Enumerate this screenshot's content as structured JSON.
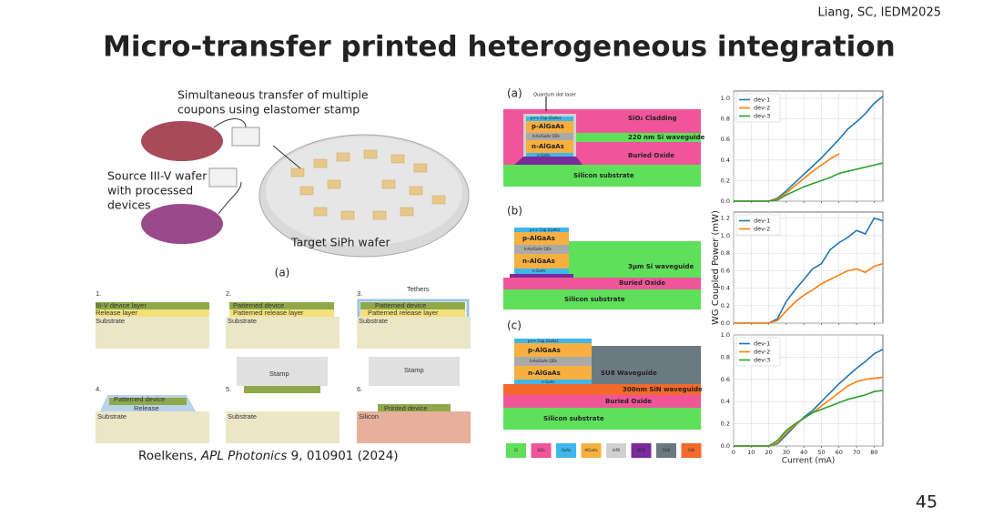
{
  "header": {
    "citation": "Liang, SC, IEDM2025",
    "title": "Micro-transfer printed heterogeneous integration"
  },
  "left_figure": {
    "caption_lines": [
      "Simultaneous transfer of multiple",
      "coupons using elastomer stamp"
    ],
    "source_lines": [
      "Source III-V wafer",
      "with processed",
      "devices"
    ],
    "target_label": "Target SiPh wafer",
    "panel_label": "(a)"
  },
  "process_steps": [
    {
      "number": "1.",
      "labels": [
        "III-V device layer",
        "Release layer",
        "Substrate"
      ]
    },
    {
      "number": "2.",
      "labels": [
        "Patterned device",
        "Patterned release layer",
        "Substrate"
      ]
    },
    {
      "number": "3.",
      "labels": [
        "Tethers",
        "Patterned device",
        "Patterned release layer",
        "Substrate",
        "Stamp"
      ]
    },
    {
      "number": "4.",
      "labels": [
        "Patterned device",
        "Release",
        "Substrate"
      ]
    },
    {
      "number": "5.",
      "labels": [
        "Stamp",
        "Substrate"
      ]
    },
    {
      "number": "6.",
      "labels": [
        "Printed device",
        "Silicon"
      ]
    }
  ],
  "reference": {
    "author": "Roelkens, ",
    "journal": "APL Photonics",
    "rest": " 9, 010901 (2024)"
  },
  "cross_sections": [
    {
      "label": "(a)",
      "texts": [
        "Quantum dot laser",
        "p++ Cap (GaAs)",
        "p-AlGaAs",
        "InAs/GaAs QDs",
        "n-AlGaAs",
        "n-GaAs",
        "SiO₂ Cladding",
        "220 nm Si waveguide",
        "Buried Oxide",
        "Silicon substrate"
      ]
    },
    {
      "label": "(b)",
      "texts": [
        "p++ Cap (GaAs)",
        "p-AlGaAs",
        "InAs/GaAs QDs",
        "n-AlGaAs",
        "n-GaAs",
        "3μm Si waveguide",
        "Buried Oxide",
        "Silicon substrate"
      ]
    },
    {
      "label": "(c)",
      "texts": [
        "p++ Cap (GaAs)",
        "p-AlGaAs",
        "InAs/GaAs QDs",
        "n-AlGaAs",
        "n-GaAs",
        "SU8 Waveguide",
        "300nm SiN waveguide",
        "Buried Oxide",
        "Silicon substrate"
      ]
    }
  ],
  "material_legend": [
    {
      "name": "Si",
      "color": "#5ee05a"
    },
    {
      "name": "SiO₂",
      "color": "#f0559a"
    },
    {
      "name": "GaAs",
      "color": "#3fb6ec"
    },
    {
      "name": "AlGaAs",
      "color": "#f7b040"
    },
    {
      "name": "Infill",
      "color": "#d0d0d0"
    },
    {
      "name": "BCB",
      "color": "#7a2a9a"
    },
    {
      "name": "SU8",
      "color": "#6b7a80"
    },
    {
      "name": "SiN",
      "color": "#f36a2a"
    }
  ],
  "chart_data": [
    {
      "type": "line",
      "xlim": [
        0,
        85
      ],
      "ylim": [
        0,
        1.07
      ],
      "grid": true,
      "legend": "upper-left",
      "show_xtick_labels": false,
      "xticks": [
        0,
        10,
        20,
        30,
        40,
        50,
        60,
        70,
        80
      ],
      "yticks": [
        {
          "value": 0,
          "label": "0.0"
        },
        {
          "value": 0.2,
          "label": "0.2"
        },
        {
          "value": 0.4,
          "label": "0.4"
        },
        {
          "value": 0.6,
          "label": "0.6"
        },
        {
          "value": 0.8,
          "label": "0.8"
        },
        {
          "value": 1,
          "label": "1.0"
        }
      ],
      "x": [
        0,
        10,
        20,
        25,
        30,
        35,
        40,
        45,
        50,
        55,
        60,
        65,
        70,
        75,
        80,
        85
      ],
      "series": [
        {
          "name": "dev-1",
          "color": "#1f77b4",
          "values": [
            0,
            0,
            0,
            0.03,
            0.1,
            0.18,
            0.26,
            0.34,
            0.42,
            0.51,
            0.6,
            0.7,
            0.77,
            0.85,
            0.95,
            1.02
          ]
        },
        {
          "name": "dev-2",
          "color": "#ff7f0e",
          "values": [
            0,
            0,
            0,
            0.02,
            0.08,
            0.15,
            0.22,
            0.29,
            0.35,
            0.41,
            0.46,
            null,
            null,
            null,
            null,
            null
          ]
        },
        {
          "name": "dev-3",
          "color": "#2ca02c",
          "values": [
            0,
            0,
            0,
            0.01,
            0.06,
            0.1,
            0.14,
            0.17,
            0.2,
            0.23,
            0.27,
            0.29,
            0.31,
            0.33,
            0.35,
            0.37
          ]
        }
      ]
    },
    {
      "type": "line",
      "xlim": [
        0,
        85
      ],
      "ylim": [
        0,
        1.27
      ],
      "grid": true,
      "legend": "upper-left",
      "show_xtick_labels": false,
      "y_label": "WG Coupled Power (mW)",
      "xticks": [
        0,
        10,
        20,
        30,
        40,
        50,
        60,
        70,
        80
      ],
      "yticks": [
        {
          "value": 0,
          "label": "0.0"
        },
        {
          "value": 0.2,
          "label": "0.2"
        },
        {
          "value": 0.4,
          "label": "0.4"
        },
        {
          "value": 0.6,
          "label": "0.6"
        },
        {
          "value": 0.8,
          "label": "0.8"
        },
        {
          "value": 1,
          "label": "1.0"
        },
        {
          "value": 1.2,
          "label": "1.2"
        }
      ],
      "x": [
        0,
        10,
        20,
        25,
        30,
        35,
        40,
        45,
        50,
        55,
        60,
        65,
        70,
        75,
        80,
        85
      ],
      "series": [
        {
          "name": "dev-1",
          "color": "#1f77b4",
          "values": [
            0,
            0,
            0,
            0.05,
            0.25,
            0.38,
            0.5,
            0.62,
            0.68,
            0.84,
            0.92,
            0.98,
            1.06,
            1.02,
            1.2,
            1.17
          ]
        },
        {
          "name": "dev-2",
          "color": "#ff7f0e",
          "values": [
            0,
            0,
            0,
            0.03,
            0.14,
            0.24,
            0.32,
            0.38,
            0.45,
            0.5,
            0.55,
            0.6,
            0.62,
            0.58,
            0.65,
            0.68
          ]
        }
      ]
    },
    {
      "type": "line",
      "xlim": [
        0,
        85
      ],
      "ylim": [
        0,
        1.0
      ],
      "grid": true,
      "legend": "upper-left",
      "show_xtick_labels": true,
      "x_label": "Current (mA)",
      "xticks": [
        0,
        10,
        20,
        30,
        40,
        50,
        60,
        70,
        80
      ],
      "yticks": [
        {
          "value": 0,
          "label": "0.0"
        },
        {
          "value": 0.2,
          "label": "0.2"
        },
        {
          "value": 0.4,
          "label": "0.4"
        },
        {
          "value": 0.6,
          "label": "0.6"
        },
        {
          "value": 0.8,
          "label": "0.8"
        },
        {
          "value": 1,
          "label": "1.0"
        }
      ],
      "x": [
        0,
        10,
        20,
        25,
        30,
        35,
        40,
        45,
        50,
        55,
        60,
        65,
        70,
        75,
        80,
        85
      ],
      "series": [
        {
          "name": "dev-1",
          "color": "#1f77b4",
          "values": [
            0,
            0,
            0,
            0.02,
            0.1,
            0.18,
            0.26,
            0.32,
            0.4,
            0.48,
            0.56,
            0.63,
            0.7,
            0.76,
            0.83,
            0.87
          ]
        },
        {
          "name": "dev-2",
          "color": "#ff7f0e",
          "values": [
            0,
            0,
            0,
            0.03,
            0.12,
            0.19,
            0.25,
            0.3,
            0.36,
            0.42,
            0.48,
            0.54,
            0.58,
            0.6,
            0.61,
            0.62
          ]
        },
        {
          "name": "dev-3",
          "color": "#2ca02c",
          "values": [
            0,
            0,
            0,
            0.05,
            0.14,
            0.2,
            0.25,
            0.3,
            0.33,
            0.36,
            0.39,
            0.42,
            0.44,
            0.46,
            0.49,
            0.5
          ]
        }
      ]
    }
  ],
  "page_number": 45
}
